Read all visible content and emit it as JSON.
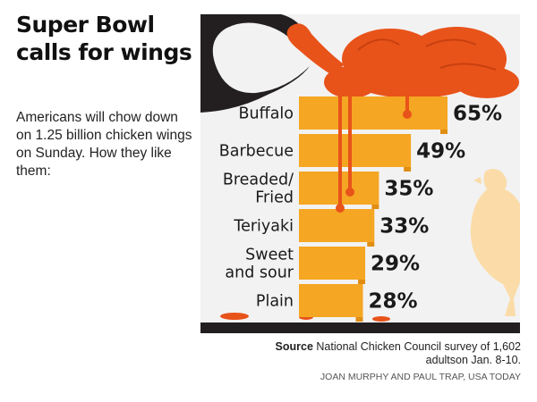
{
  "headline": "Super Bowl calls for wings",
  "intro": "Americans will chow down on 1.25 billion chicken wings on Sunday. How they like them:",
  "source": {
    "label": "Source",
    "text": "National Chicken Council survey of 1,602 adultson Jan. 8-10."
  },
  "credit": "JOAN MURPHY AND PAUL TRAP, USA TODAY",
  "colors": {
    "bar": "#f5a623",
    "bar_shadow": "#e08e12",
    "sauce": "#e8531a",
    "dark": "#231f20",
    "panel_bg": "#f2f2f2",
    "chicken": "#fbdca8"
  },
  "chart_data": {
    "type": "bar",
    "orientation": "horizontal",
    "title": "Super Bowl calls for wings",
    "unit": "%",
    "categories": [
      "Buffalo",
      "Barbecue",
      "Breaded/ Fried",
      "Teriyaki",
      "Sweet and sour",
      "Plain"
    ],
    "category_lines": [
      [
        "Buffalo"
      ],
      [
        "Barbecue"
      ],
      [
        "Breaded/",
        "Fried"
      ],
      [
        "Teriyaki"
      ],
      [
        "Sweet",
        "and sour"
      ],
      [
        "Plain"
      ]
    ],
    "values": [
      65,
      49,
      35,
      33,
      29,
      28
    ],
    "value_labels": [
      "65%",
      "49%",
      "35%",
      "33%",
      "29%",
      "28%"
    ]
  }
}
